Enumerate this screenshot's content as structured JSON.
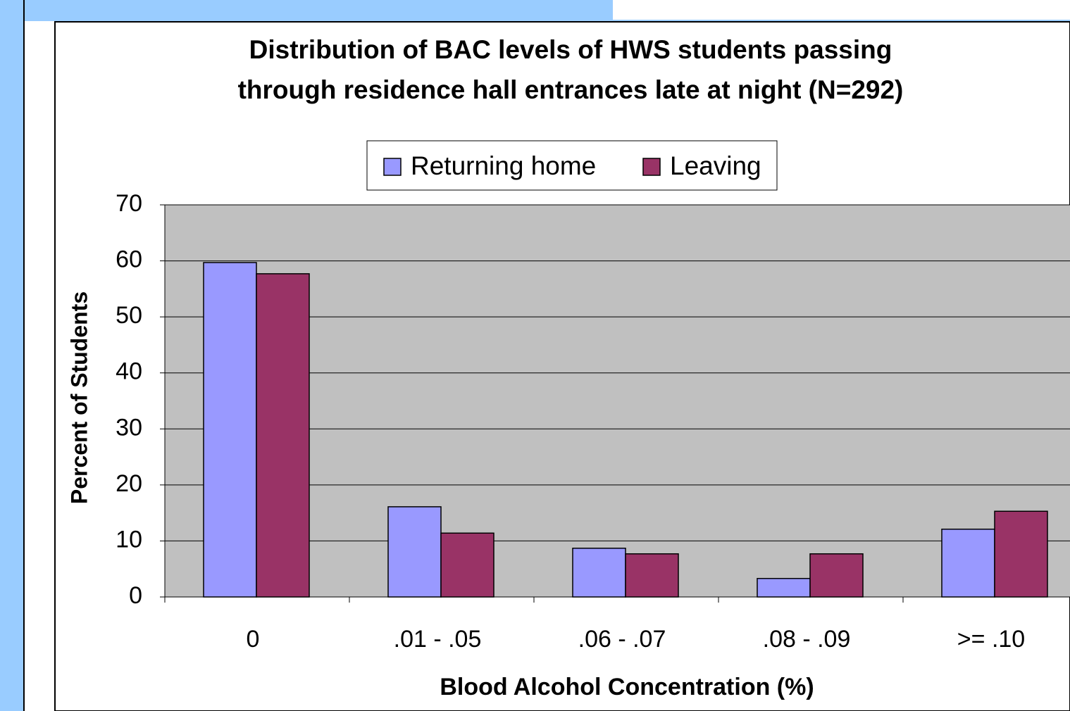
{
  "chart_data": {
    "type": "bar",
    "title": [
      "Distribution of BAC levels of HWS students passing",
      "through residence hall entrances late at night (N=292)"
    ],
    "x_label": "Blood Alcohol Concentration (%)",
    "y_label": "Percent of Students",
    "categories": [
      "0",
      ".01 - .05",
      ".06 - .07",
      ".08 - .09",
      ">= .10"
    ],
    "series": [
      {
        "name": "Returning home",
        "color": "#9999ff",
        "values": [
          59.7,
          16.1,
          8.7,
          3.3,
          12.1
        ]
      },
      {
        "name": "Leaving",
        "color": "#993366",
        "values": [
          57.7,
          11.4,
          7.7,
          7.7,
          15.3
        ]
      }
    ],
    "ylim": [
      0,
      70
    ],
    "yticks": [
      0,
      10,
      20,
      30,
      40,
      50,
      60,
      70
    ],
    "grid": true,
    "legend": "top"
  }
}
